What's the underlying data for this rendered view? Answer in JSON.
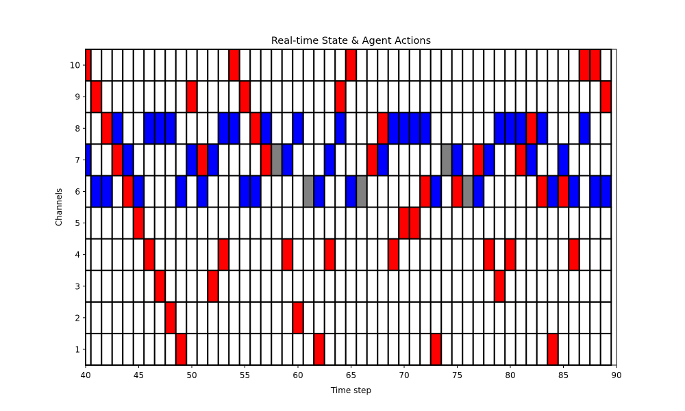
{
  "chart_data": {
    "type": "heatmap",
    "title": "Real-time State & Agent Actions",
    "xlabel": "Time step",
    "ylabel": "Channels",
    "xlim": [
      40,
      90
    ],
    "ylim": [
      0.5,
      10.5
    ],
    "x_ticks": [
      40,
      45,
      50,
      55,
      60,
      65,
      70,
      75,
      80,
      85,
      90
    ],
    "y_ticks": [
      1,
      2,
      3,
      4,
      5,
      6,
      7,
      8,
      9,
      10
    ],
    "grid": false,
    "legend": "none",
    "time_steps": [
      40,
      41,
      42,
      43,
      44,
      45,
      46,
      47,
      48,
      49,
      50,
      51,
      52,
      53,
      54,
      55,
      56,
      57,
      58,
      59,
      60,
      61,
      62,
      63,
      64,
      65,
      66,
      67,
      68,
      69,
      70,
      71,
      72,
      73,
      74,
      75,
      76,
      77,
      78,
      79,
      80,
      81,
      82,
      83,
      84,
      85,
      86,
      87,
      88,
      89
    ],
    "channels": [
      1,
      2,
      3,
      4,
      5,
      6,
      7,
      8,
      9,
      10
    ],
    "state_colors": {
      "empty": "#ffffff",
      "red": "#ff0000",
      "blue": "#0000ff",
      "gray": "#808080"
    },
    "cells": {
      "red": [
        [
          40,
          10
        ],
        [
          41,
          9
        ],
        [
          42,
          8
        ],
        [
          43,
          7
        ],
        [
          44,
          6
        ],
        [
          45,
          5
        ],
        [
          46,
          4
        ],
        [
          47,
          3
        ],
        [
          48,
          2
        ],
        [
          49,
          1
        ],
        [
          50,
          9
        ],
        [
          51,
          7
        ],
        [
          52,
          3
        ],
        [
          53,
          4
        ],
        [
          54,
          10
        ],
        [
          55,
          9
        ],
        [
          56,
          8
        ],
        [
          57,
          7
        ],
        [
          59,
          4
        ],
        [
          60,
          2
        ],
        [
          62,
          1
        ],
        [
          63,
          4
        ],
        [
          64,
          9
        ],
        [
          65,
          10
        ],
        [
          67,
          7
        ],
        [
          68,
          8
        ],
        [
          69,
          4
        ],
        [
          70,
          5
        ],
        [
          71,
          5
        ],
        [
          72,
          6
        ],
        [
          73,
          1
        ],
        [
          75,
          6
        ],
        [
          77,
          7
        ],
        [
          78,
          4
        ],
        [
          79,
          3
        ],
        [
          80,
          4
        ],
        [
          81,
          7
        ],
        [
          82,
          8
        ],
        [
          83,
          6
        ],
        [
          84,
          1
        ],
        [
          85,
          6
        ],
        [
          86,
          4
        ],
        [
          87,
          10
        ],
        [
          88,
          10
        ],
        [
          89,
          9
        ]
      ],
      "blue": [
        [
          40,
          7
        ],
        [
          41,
          6
        ],
        [
          42,
          6
        ],
        [
          43,
          8
        ],
        [
          44,
          7
        ],
        [
          45,
          6
        ],
        [
          46,
          8
        ],
        [
          47,
          8
        ],
        [
          48,
          8
        ],
        [
          49,
          6
        ],
        [
          50,
          7
        ],
        [
          51,
          6
        ],
        [
          52,
          7
        ],
        [
          53,
          8
        ],
        [
          54,
          8
        ],
        [
          55,
          6
        ],
        [
          56,
          6
        ],
        [
          57,
          8
        ],
        [
          59,
          7
        ],
        [
          60,
          8
        ],
        [
          62,
          6
        ],
        [
          63,
          7
        ],
        [
          64,
          8
        ],
        [
          65,
          6
        ],
        [
          68,
          7
        ],
        [
          69,
          8
        ],
        [
          70,
          8
        ],
        [
          71,
          8
        ],
        [
          72,
          8
        ],
        [
          73,
          6
        ],
        [
          75,
          7
        ],
        [
          77,
          6
        ],
        [
          78,
          7
        ],
        [
          79,
          8
        ],
        [
          80,
          8
        ],
        [
          81,
          8
        ],
        [
          82,
          7
        ],
        [
          83,
          8
        ],
        [
          84,
          6
        ],
        [
          85,
          7
        ],
        [
          86,
          6
        ],
        [
          87,
          8
        ],
        [
          88,
          6
        ],
        [
          89,
          6
        ]
      ],
      "gray": [
        [
          58,
          7
        ],
        [
          61,
          6
        ],
        [
          66,
          6
        ],
        [
          74,
          7
        ],
        [
          76,
          6
        ]
      ]
    }
  }
}
